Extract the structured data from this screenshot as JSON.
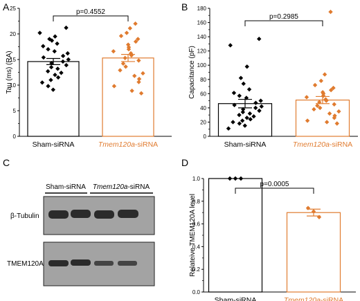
{
  "colors": {
    "control": "#000000",
    "treated": "#E07B2F",
    "blot_bg": "#9e9e9e",
    "band": "#2b2b2b"
  },
  "panels": {
    "A": {
      "letter": "A"
    },
    "B": {
      "letter": "B"
    },
    "C": {
      "letter": "C",
      "lane_group_1": "Sham-siRNA",
      "lane_group_2_italic": "Tmem120a",
      "lane_group_2_suffix": "-siRNA",
      "blot_1_label": "β-Tubulin",
      "blot_2_label": "TMEM120A"
    },
    "D": {
      "letter": "D"
    }
  },
  "chart_data": [
    {
      "panel": "A",
      "type": "bar",
      "ylabel": "Tau (ms) (RA)",
      "ylim": [
        0,
        25
      ],
      "yticks": [
        0,
        5,
        10,
        15,
        20,
        25
      ],
      "categories": [
        "Sham-siRNA",
        "Tmem120a-siRNA"
      ],
      "category_display": [
        {
          "italic": "",
          "plain": "Sham-siRNA"
        },
        {
          "italic": "Tmem120a",
          "plain": "-siRNA"
        }
      ],
      "values": [
        14.6,
        15.3
      ],
      "sem": [
        0.6,
        0.7
      ],
      "points": [
        [
          21.2,
          20.2,
          19.5,
          19.0,
          18.7,
          18.1,
          17.6,
          17.0,
          16.6,
          16.2,
          15.7,
          15.4,
          15.0,
          14.6,
          14.3,
          13.9,
          13.5,
          13.2,
          12.7,
          12.4,
          12.0,
          11.5,
          11.0,
          10.5,
          9.8,
          9.1
        ],
        [
          22.0,
          21.1,
          20.2,
          19.6,
          19.0,
          18.5,
          17.9,
          17.4,
          17.0,
          16.6,
          16.2,
          15.8,
          15.3,
          14.8,
          14.2,
          13.6,
          12.9,
          12.3,
          11.8,
          11.2,
          10.6,
          9.8,
          8.9,
          8.4
        ]
      ],
      "annotation": "p=0.4552"
    },
    {
      "panel": "B",
      "type": "bar",
      "ylabel": "Capacitance (pF)",
      "ylim": [
        0,
        180
      ],
      "yticks": [
        0,
        20,
        40,
        60,
        80,
        100,
        120,
        140,
        160,
        180
      ],
      "categories": [
        "Sham-siRNA",
        "Tmem120a-siRNA"
      ],
      "category_display": [
        {
          "italic": "",
          "plain": "Sham-siRNA"
        },
        {
          "italic": "Tmem120a",
          "plain": "-siRNA"
        }
      ],
      "values": [
        46,
        51
      ],
      "sem": [
        6,
        5
      ],
      "points": [
        [
          137,
          128,
          98,
          82,
          74,
          66,
          61,
          57,
          54,
          50,
          47,
          44,
          42,
          40,
          38,
          36,
          34,
          32,
          30,
          28,
          26,
          24,
          22,
          20,
          18,
          15,
          11
        ],
        [
          175,
          87,
          78,
          72,
          68,
          65,
          62,
          60,
          57,
          55,
          52,
          50,
          48,
          45,
          43,
          40,
          38,
          35,
          32,
          29,
          26,
          22,
          20,
          18
        ]
      ],
      "annotation": "p=0.2985"
    },
    {
      "panel": "D",
      "type": "bar",
      "ylabel": "Relateive TMEM120A level",
      "ylim": [
        0,
        1.0
      ],
      "yticks": [
        0.0,
        0.2,
        0.4,
        0.6,
        0.8,
        1.0
      ],
      "categories": [
        "Sham-siRNA",
        "Tmem120a-siRNA"
      ],
      "category_display": [
        {
          "italic": "",
          "plain": "Sham-siRNA"
        },
        {
          "italic": "Tmem120a",
          "plain": "-siRNA"
        }
      ],
      "values": [
        1.0,
        0.7
      ],
      "sem": [
        0,
        0.03
      ],
      "points": [
        [
          1.0,
          1.0,
          1.0
        ],
        [
          0.74,
          0.71,
          0.66
        ]
      ],
      "annotation": "p=0.0005"
    }
  ]
}
